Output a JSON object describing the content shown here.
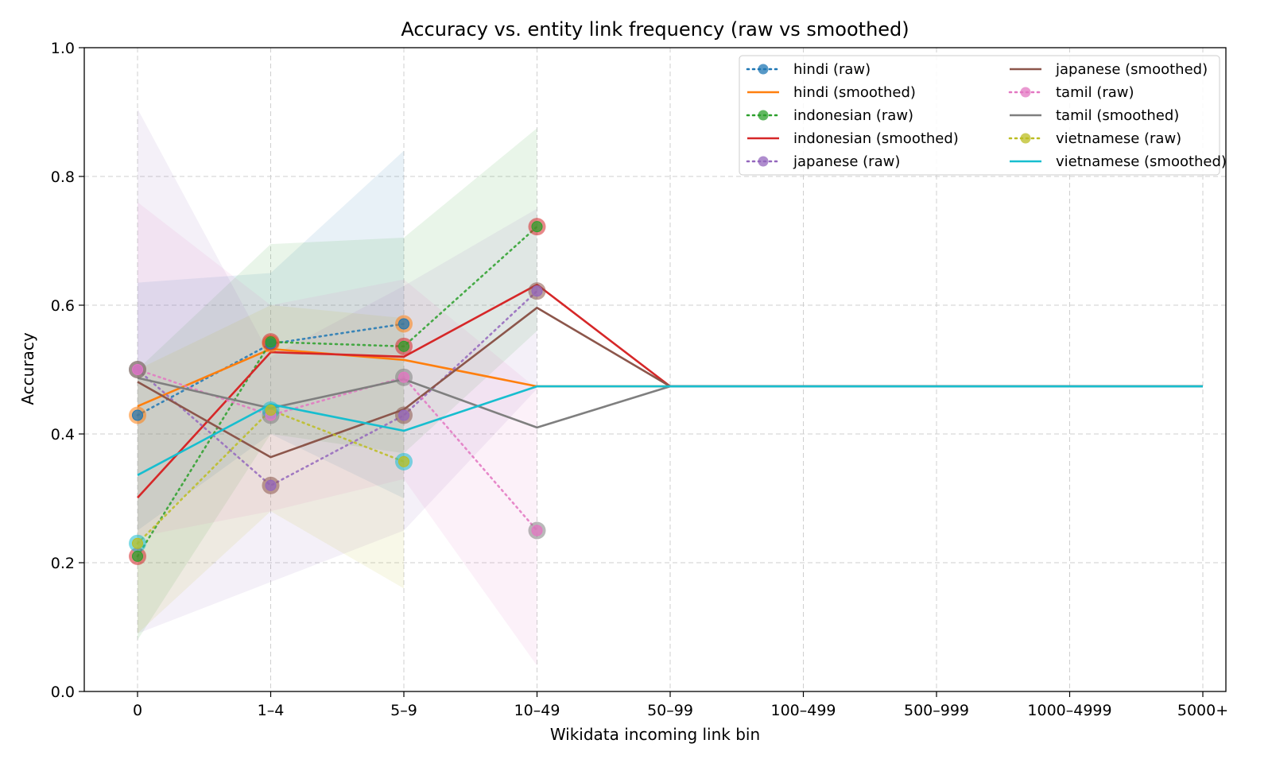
{
  "chart_data": {
    "type": "line",
    "title": "Accuracy vs. entity link frequency (raw vs smoothed)",
    "xlabel": "Wikidata incoming link bin",
    "ylabel": "Accuracy",
    "categories": [
      "0",
      "1–4",
      "5–9",
      "10–49",
      "50–99",
      "100–499",
      "500–999",
      "1000–4999",
      "5000+"
    ],
    "ylim": [
      0,
      1
    ],
    "yticks": [
      "0.0",
      "0.2",
      "0.4",
      "0.6",
      "0.8",
      "1.0"
    ],
    "grid": true,
    "legend_position": "top-right",
    "legend_columns": 2,
    "colors": {
      "hindi": "#1f77b4",
      "hindi_smoothed": "#ff7f0e",
      "indonesian": "#2ca02c",
      "indonesian_smoothed": "#d62728",
      "japanese": "#9467bd",
      "japanese_smoothed": "#8c564b",
      "tamil": "#e377c2",
      "tamil_smoothed": "#7f7f7f",
      "vietnamese": "#bcbd22",
      "vietnamese_smoothed": "#17becf"
    },
    "series": [
      {
        "name": "hindi (raw)",
        "style": "raw",
        "color": "#1f77b4",
        "values": [
          0.429,
          0.54,
          0.571,
          null,
          null,
          null,
          null,
          null,
          null
        ],
        "ci_low": [
          0.25,
          0.4,
          0.3,
          null
        ],
        "ci_high": [
          0.635,
          0.65,
          0.84,
          null
        ]
      },
      {
        "name": "hindi (smoothed)",
        "style": "smoothed",
        "color": "#ff7f0e",
        "values": [
          0.443,
          0.532,
          0.515,
          0.474,
          0.474,
          0.474,
          0.474,
          0.474,
          0.474
        ]
      },
      {
        "name": "indonesian (raw)",
        "style": "raw",
        "color": "#2ca02c",
        "values": [
          0.21,
          0.543,
          0.536,
          0.722,
          null,
          null,
          null,
          null,
          null
        ],
        "ci_low": [
          0.08,
          0.4,
          0.37,
          0.56
        ],
        "ci_high": [
          0.5,
          0.695,
          0.705,
          0.875
        ]
      },
      {
        "name": "indonesian (smoothed)",
        "style": "smoothed",
        "color": "#d62728",
        "values": [
          0.301,
          0.527,
          0.52,
          0.632,
          0.474,
          0.474,
          0.474,
          0.474,
          0.474
        ]
      },
      {
        "name": "japanese (raw)",
        "style": "raw",
        "color": "#9467bd",
        "values": [
          0.5,
          0.32,
          0.429,
          0.622,
          null,
          null,
          null,
          null,
          null
        ],
        "ci_low": [
          0.09,
          0.17,
          0.25,
          0.47
        ],
        "ci_high": [
          0.905,
          0.52,
          0.63,
          0.75
        ]
      },
      {
        "name": "japanese (smoothed)",
        "style": "smoothed",
        "color": "#8c564b",
        "values": [
          0.481,
          0.364,
          0.438,
          0.596,
          0.474,
          0.474,
          0.474,
          0.474,
          0.474
        ]
      },
      {
        "name": "tamil (raw)",
        "style": "raw",
        "color": "#e377c2",
        "values": [
          0.5,
          0.429,
          0.488,
          0.25,
          null,
          null,
          null,
          null,
          null
        ],
        "ci_low": [
          0.24,
          0.28,
          0.33,
          0.04
        ],
        "ci_high": [
          0.76,
          0.6,
          0.64,
          0.47
        ]
      },
      {
        "name": "tamil (smoothed)",
        "style": "smoothed",
        "color": "#7f7f7f",
        "values": [
          0.487,
          0.44,
          0.485,
          0.41,
          0.474,
          0.474,
          0.474,
          0.474,
          0.474
        ]
      },
      {
        "name": "vietnamese (raw)",
        "style": "raw",
        "color": "#bcbd22",
        "values": [
          0.23,
          0.437,
          0.357,
          null,
          null,
          null,
          null,
          null,
          null
        ],
        "ci_low": [
          0.09,
          0.28,
          0.16,
          null
        ],
        "ci_high": [
          0.5,
          0.6,
          0.58,
          null
        ]
      },
      {
        "name": "vietnamese (smoothed)",
        "style": "smoothed",
        "color": "#17becf",
        "values": [
          0.336,
          0.446,
          0.405,
          0.474,
          0.474,
          0.474,
          0.474,
          0.474,
          0.474
        ]
      }
    ]
  }
}
